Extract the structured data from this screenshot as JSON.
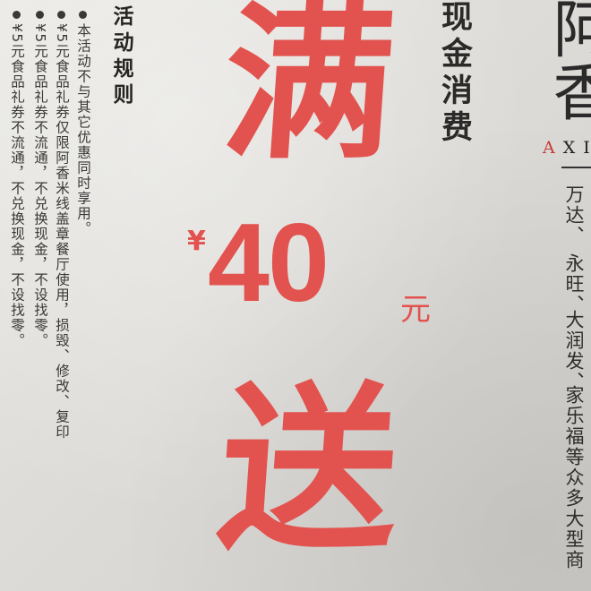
{
  "rules": {
    "title": "活动规则",
    "items": [
      "本活动不与其它优惠同时享用。",
      "¥5元食品礼券仅限阿香米线盖章餐厅使用，损毁、修改、复印",
      "¥5元食品礼券不流通，不兑换现金，不设找零。",
      "¥5元食品礼券不流通，不兑换现金，不设找零。"
    ]
  },
  "promo": {
    "condition": "现金消费",
    "char_full": "满",
    "currency": "¥",
    "amount": "40",
    "unit": "元",
    "char_give": "送"
  },
  "brand": {
    "partial_name": "阿香",
    "roman_first": "A",
    "roman_rest": "XI"
  },
  "partners": [
    "万达、",
    "永旺、",
    "大润发、",
    "家乐福等众多大型商"
  ],
  "colors": {
    "promo_red": "#e2534f",
    "text_dark": "#2d2c2b",
    "paper": "#e4e3df"
  }
}
